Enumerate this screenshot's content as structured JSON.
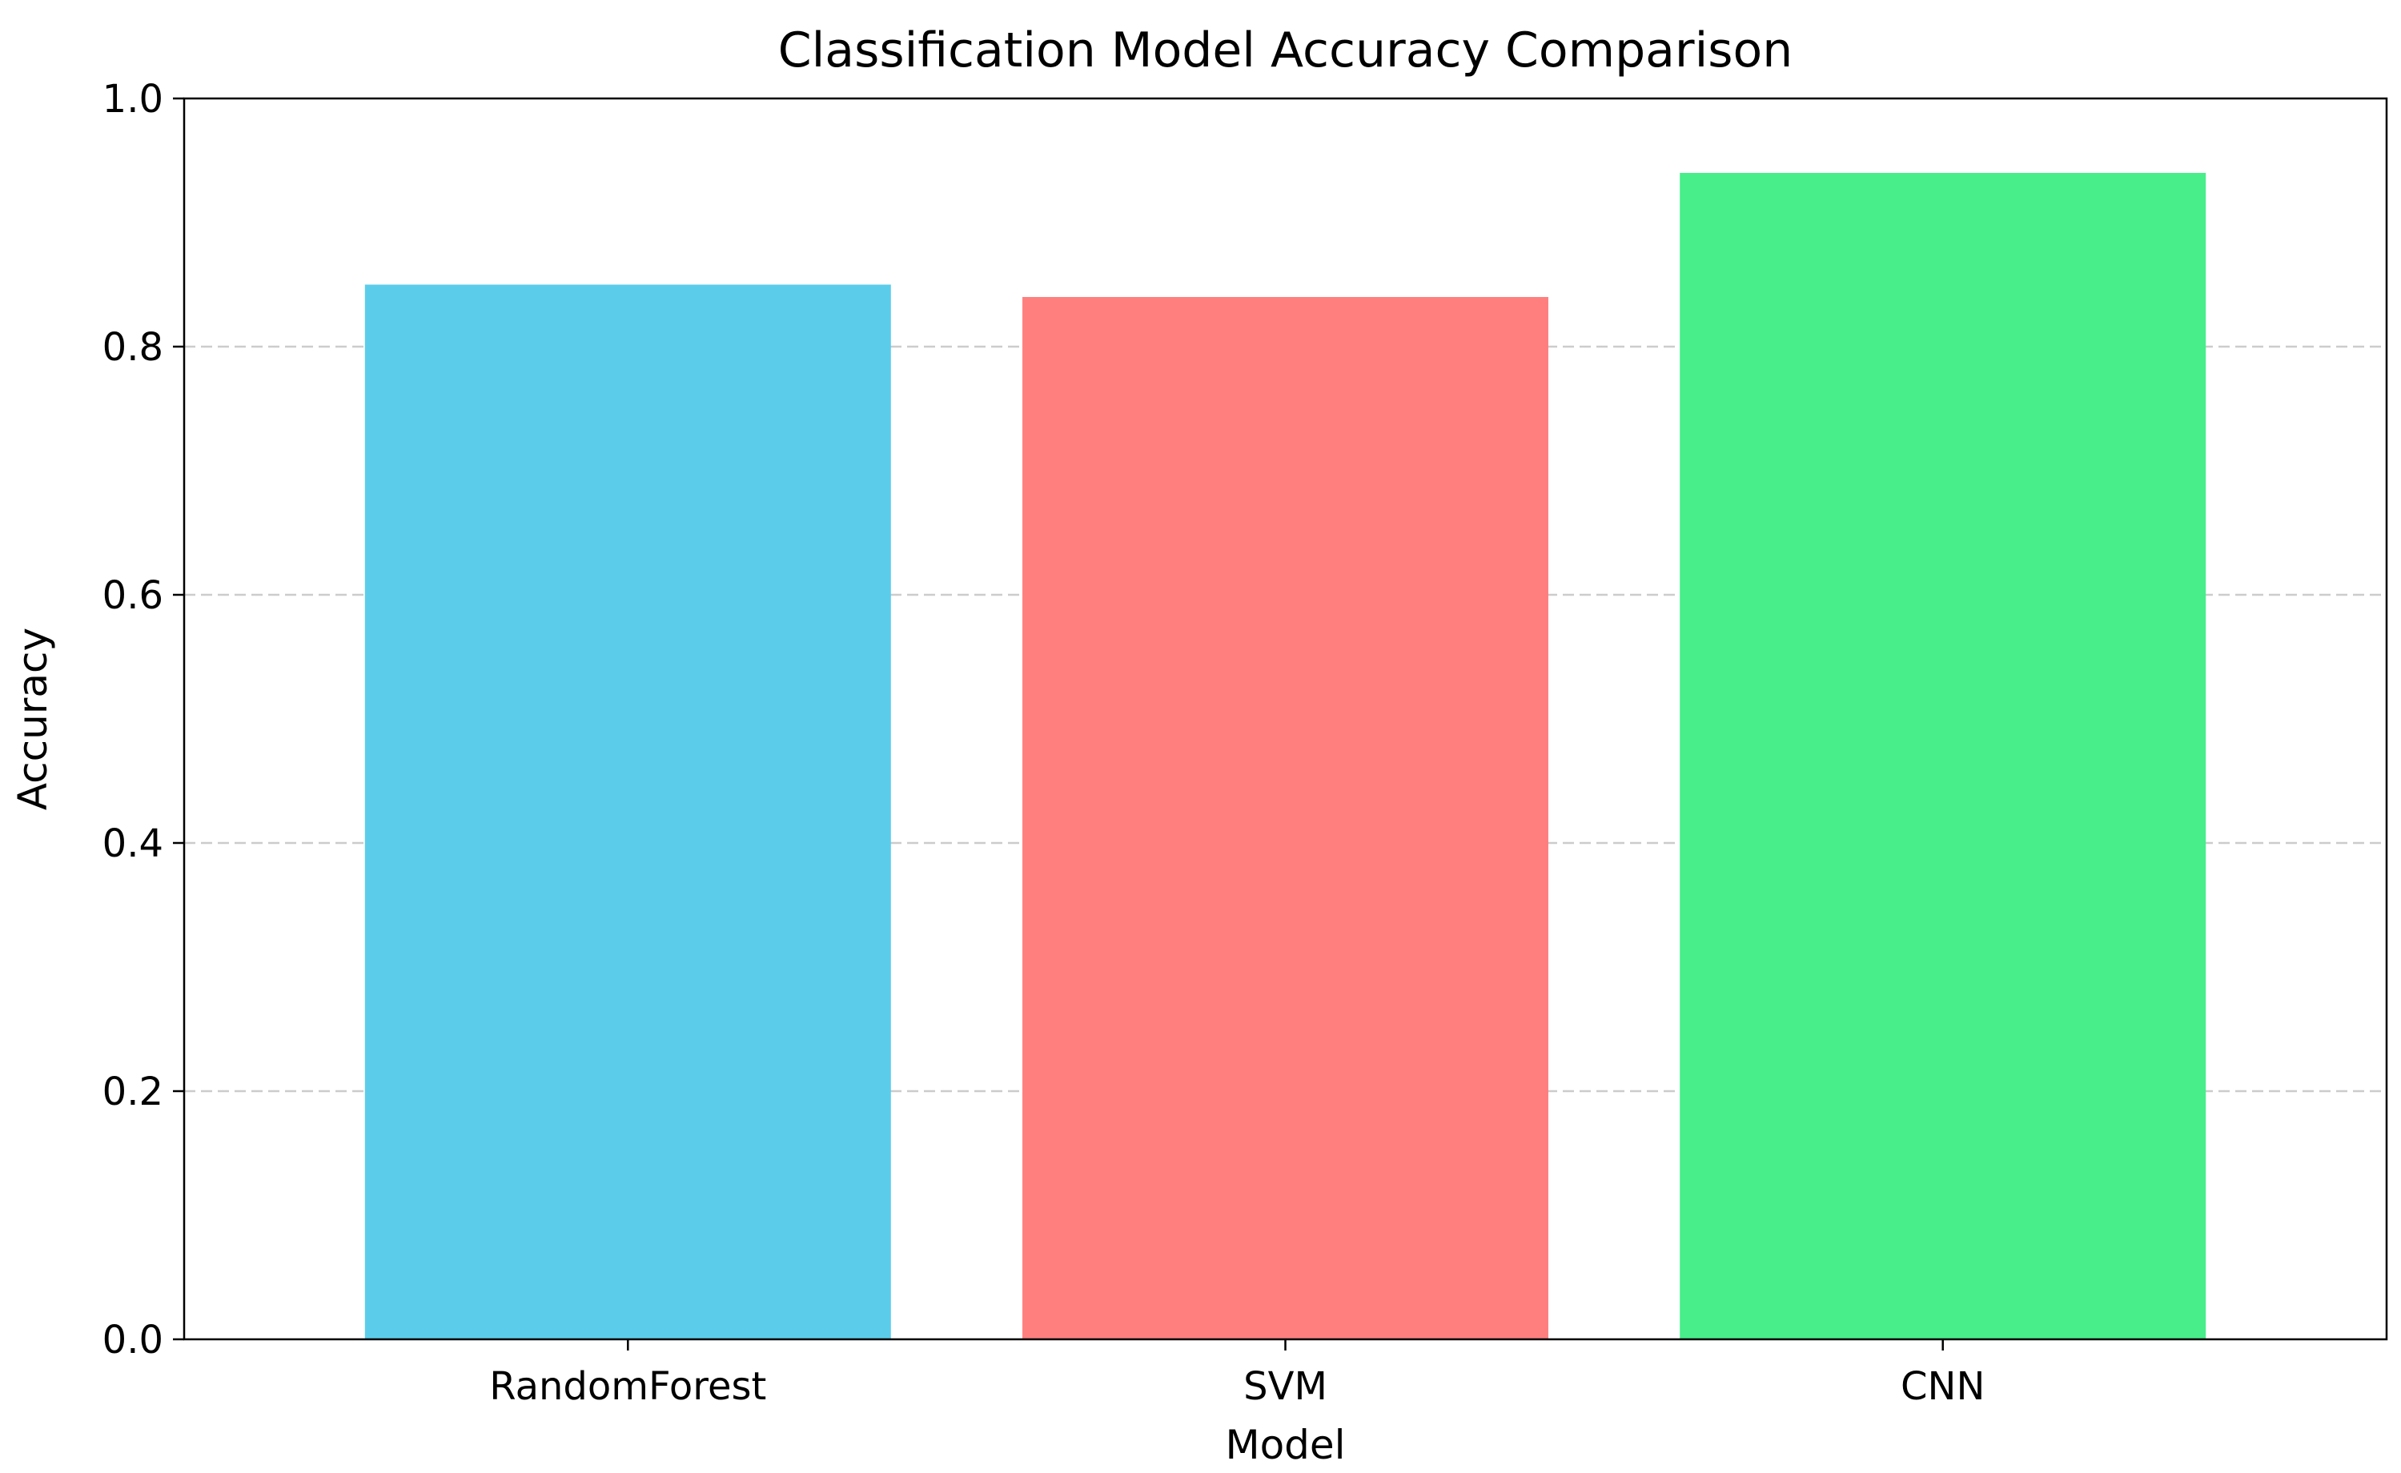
{
  "chart_data": {
    "type": "bar",
    "title": "Classification Model Accuracy Comparison",
    "xlabel": "Model",
    "ylabel": "Accuracy",
    "categories": [
      "RandomForest",
      "SVM",
      "CNN"
    ],
    "values": [
      0.85,
      0.84,
      0.94
    ],
    "colors": [
      "#5BCDEB",
      "#FF7F7F",
      "#47EE8A"
    ],
    "ylim": [
      0,
      1.0
    ],
    "yticks": [
      0.0,
      0.2,
      0.4,
      0.6,
      0.8,
      1.0
    ],
    "ytick_labels": [
      "0.0",
      "0.2",
      "0.4",
      "0.6",
      "0.8",
      "1.0"
    ],
    "grid": {
      "axis": "y",
      "style": "dashed",
      "color": "#cccccc"
    },
    "legend": "none"
  }
}
